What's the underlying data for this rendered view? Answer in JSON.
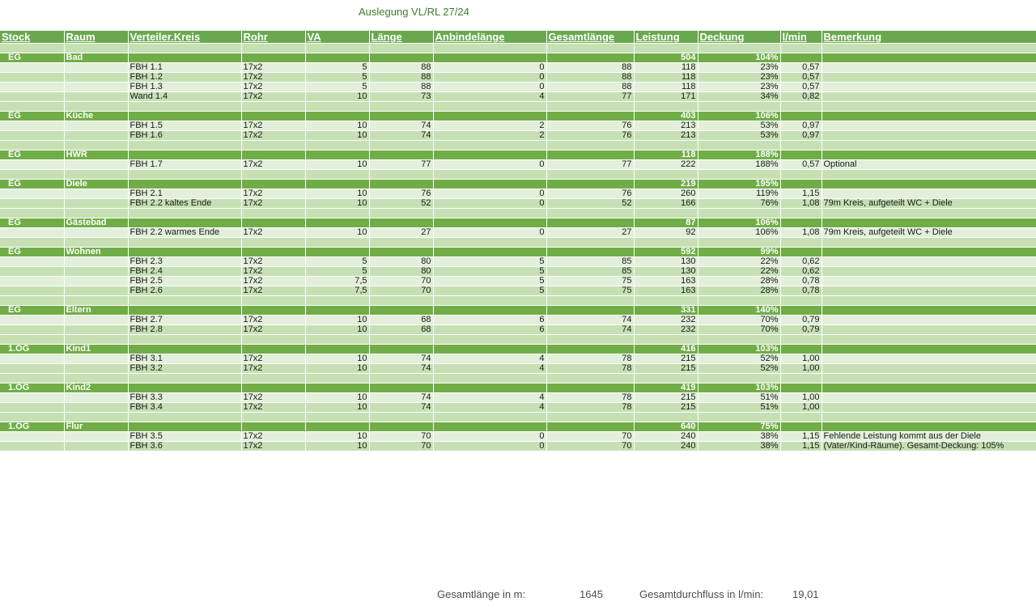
{
  "title": "Auslegung VL/RL 27/24",
  "headers": [
    "Stock",
    "Raum",
    "Verteiler.Kreis",
    "Rohr",
    "VA",
    "Länge",
    "Anbindelänge",
    "Gesamtlänge",
    "Leistung",
    "Deckung",
    "l/min",
    "Bemerkung"
  ],
  "rooms": [
    {
      "stock": "EG",
      "raum": "Bad",
      "leistung": "504",
      "deckung": "104%",
      "circuits": [
        {
          "kreis": "FBH 1.1",
          "rohr": "17x2",
          "va": "5",
          "laenge": "88",
          "anbind": "0",
          "gesamt": "88",
          "leistung": "118",
          "deckung": "23%",
          "lmin": "0,57",
          "bem": ""
        },
        {
          "kreis": "FBH 1.2",
          "rohr": "17x2",
          "va": "5",
          "laenge": "88",
          "anbind": "0",
          "gesamt": "88",
          "leistung": "118",
          "deckung": "23%",
          "lmin": "0,57",
          "bem": ""
        },
        {
          "kreis": "FBH 1.3",
          "rohr": "17x2",
          "va": "5",
          "laenge": "88",
          "anbind": "0",
          "gesamt": "88",
          "leistung": "118",
          "deckung": "23%",
          "lmin": "0,57",
          "bem": ""
        },
        {
          "kreis": "Wand 1.4",
          "rohr": "17x2",
          "va": "10",
          "laenge": "73",
          "anbind": "4",
          "gesamt": "77",
          "leistung": "171",
          "deckung": "34%",
          "lmin": "0,82",
          "bem": ""
        }
      ]
    },
    {
      "stock": "EG",
      "raum": "Küche",
      "leistung": "403",
      "deckung": "106%",
      "circuits": [
        {
          "kreis": "FBH 1.5",
          "rohr": "17x2",
          "va": "10",
          "laenge": "74",
          "anbind": "2",
          "gesamt": "76",
          "leistung": "213",
          "deckung": "53%",
          "lmin": "0,97",
          "bem": ""
        },
        {
          "kreis": "FBH 1.6",
          "rohr": "17x2",
          "va": "10",
          "laenge": "74",
          "anbind": "2",
          "gesamt": "76",
          "leistung": "213",
          "deckung": "53%",
          "lmin": "0,97",
          "bem": ""
        }
      ]
    },
    {
      "stock": "EG",
      "raum": "HWR",
      "leistung": "118",
      "deckung": "188%",
      "circuits": [
        {
          "kreis": "FBH 1.7",
          "rohr": "17x2",
          "va": "10",
          "laenge": "77",
          "anbind": "0",
          "gesamt": "77",
          "leistung": "222",
          "deckung": "188%",
          "lmin": "0,57",
          "bem": "Optional"
        }
      ]
    },
    {
      "stock": "EG",
      "raum": "Diele",
      "leistung": "219",
      "deckung": "195%",
      "circuits": [
        {
          "kreis": "FBH 2.1",
          "rohr": "17x2",
          "va": "10",
          "laenge": "76",
          "anbind": "0",
          "gesamt": "76",
          "leistung": "260",
          "deckung": "119%",
          "lmin": "1,15",
          "bem": ""
        },
        {
          "kreis": "FBH 2.2 kaltes Ende",
          "rohr": "17x2",
          "va": "10",
          "laenge": "52",
          "anbind": "0",
          "gesamt": "52",
          "leistung": "166",
          "deckung": "76%",
          "lmin": "1,08",
          "bem": "79m Kreis, aufgeteilt WC + Diele"
        }
      ]
    },
    {
      "stock": "EG",
      "raum": "Gästebad",
      "leistung": "87",
      "deckung": "106%",
      "circuits": [
        {
          "kreis": "FBH 2.2 warmes Ende",
          "rohr": "17x2",
          "va": "10",
          "laenge": "27",
          "anbind": "0",
          "gesamt": "27",
          "leistung": "92",
          "deckung": "106%",
          "lmin": "1,08",
          "bem": "79m Kreis, aufgeteilt WC + Diele"
        }
      ]
    },
    {
      "stock": "EG",
      "raum": "Wohnen",
      "leistung": "592",
      "deckung": "99%",
      "circuits": [
        {
          "kreis": "FBH 2.3",
          "rohr": "17x2",
          "va": "5",
          "laenge": "80",
          "anbind": "5",
          "gesamt": "85",
          "leistung": "130",
          "deckung": "22%",
          "lmin": "0,62",
          "bem": ""
        },
        {
          "kreis": "FBH 2.4",
          "rohr": "17x2",
          "va": "5",
          "laenge": "80",
          "anbind": "5",
          "gesamt": "85",
          "leistung": "130",
          "deckung": "22%",
          "lmin": "0,62",
          "bem": ""
        },
        {
          "kreis": "FBH 2.5",
          "rohr": "17x2",
          "va": "7,5",
          "laenge": "70",
          "anbind": "5",
          "gesamt": "75",
          "leistung": "163",
          "deckung": "28%",
          "lmin": "0,78",
          "bem": ""
        },
        {
          "kreis": "FBH 2.6",
          "rohr": "17x2",
          "va": "7,5",
          "laenge": "70",
          "anbind": "5",
          "gesamt": "75",
          "leistung": "163",
          "deckung": "28%",
          "lmin": "0,78",
          "bem": ""
        }
      ]
    },
    {
      "stock": "EG",
      "raum": "Eltern",
      "leistung": "331",
      "deckung": "140%",
      "circuits": [
        {
          "kreis": "FBH 2.7",
          "rohr": "17x2",
          "va": "10",
          "laenge": "68",
          "anbind": "6",
          "gesamt": "74",
          "leistung": "232",
          "deckung": "70%",
          "lmin": "0,79",
          "bem": ""
        },
        {
          "kreis": "FBH 2.8",
          "rohr": "17x2",
          "va": "10",
          "laenge": "68",
          "anbind": "6",
          "gesamt": "74",
          "leistung": "232",
          "deckung": "70%",
          "lmin": "0,79",
          "bem": ""
        }
      ]
    },
    {
      "stock": "1.OG",
      "raum": "Kind1",
      "leistung": "416",
      "deckung": "103%",
      "circuits": [
        {
          "kreis": "FBH 3.1",
          "rohr": "17x2",
          "va": "10",
          "laenge": "74",
          "anbind": "4",
          "gesamt": "78",
          "leistung": "215",
          "deckung": "52%",
          "lmin": "1,00",
          "bem": ""
        },
        {
          "kreis": "FBH 3.2",
          "rohr": "17x2",
          "va": "10",
          "laenge": "74",
          "anbind": "4",
          "gesamt": "78",
          "leistung": "215",
          "deckung": "52%",
          "lmin": "1,00",
          "bem": ""
        }
      ]
    },
    {
      "stock": "1.OG",
      "raum": "Kind2",
      "leistung": "419",
      "deckung": "103%",
      "circuits": [
        {
          "kreis": "FBH 3.3",
          "rohr": "17x2",
          "va": "10",
          "laenge": "74",
          "anbind": "4",
          "gesamt": "78",
          "leistung": "215",
          "deckung": "51%",
          "lmin": "1,00",
          "bem": ""
        },
        {
          "kreis": "FBH 3.4",
          "rohr": "17x2",
          "va": "10",
          "laenge": "74",
          "anbind": "4",
          "gesamt": "78",
          "leistung": "215",
          "deckung": "51%",
          "lmin": "1,00",
          "bem": ""
        }
      ]
    },
    {
      "stock": "1.OG",
      "raum": "Flur",
      "leistung": "640",
      "deckung": "75%",
      "circuits": [
        {
          "kreis": "FBH 3.5",
          "rohr": "17x2",
          "va": "10",
          "laenge": "70",
          "anbind": "0",
          "gesamt": "70",
          "leistung": "240",
          "deckung": "38%",
          "lmin": "1,15",
          "bem": "Fehlende Leistung kommt aus der Diele"
        },
        {
          "kreis": "FBH 3.6",
          "rohr": "17x2",
          "va": "10",
          "laenge": "70",
          "anbind": "0",
          "gesamt": "70",
          "leistung": "240",
          "deckung": "38%",
          "lmin": "1,15",
          "bem": "(Vater/Kind-Räume). Gesamt-Deckung: 105%"
        }
      ]
    }
  ],
  "footer": {
    "total_length_label": "Gesamtlänge in m:",
    "total_length_value": "1645",
    "total_flow_label": "Gesamtdurchfluss in l/min:",
    "total_flow_value": "19,01"
  }
}
